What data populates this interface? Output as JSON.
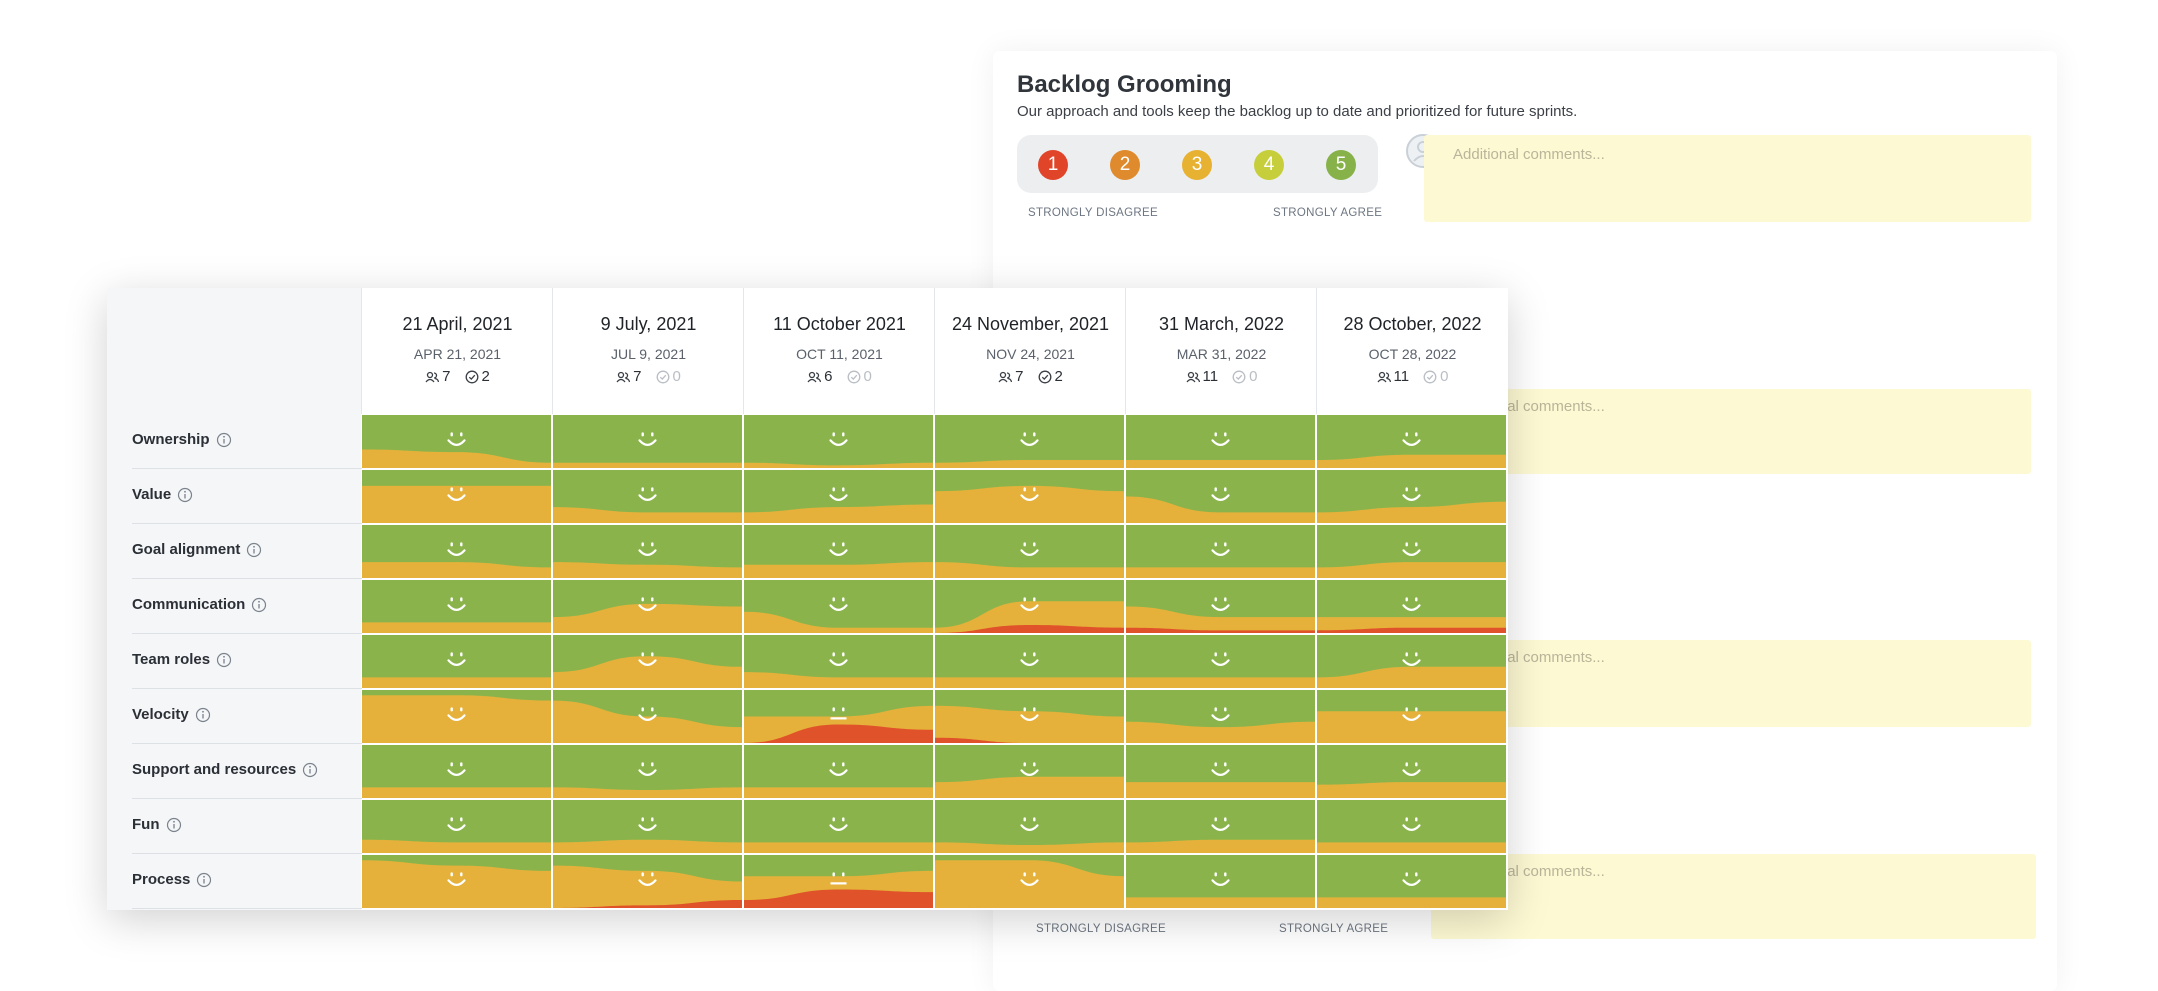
{
  "card": {
    "title": "Backlog Grooming",
    "description": "Our approach and tools keep the backlog up to date and prioritized for future sprints.",
    "scale": [
      1,
      2,
      3,
      4,
      5
    ],
    "scale_low": "STRONGLY DISAGREE",
    "scale_high": "STRONGLY AGREE",
    "comment_placeholder": "Additional comments..."
  },
  "table": {
    "columns": [
      {
        "date": "21 April, 2021",
        "short": "APR 21, 2021",
        "participants": 7,
        "actions": 2
      },
      {
        "date": "9 July, 2021",
        "short": "JUL 9, 2021",
        "participants": 7,
        "actions": 0
      },
      {
        "date": "11 October 2021",
        "short": "OCT 11, 2021",
        "participants": 6,
        "actions": 0
      },
      {
        "date": "24 November, 2021",
        "short": "NOV 24, 2021",
        "participants": 7,
        "actions": 2
      },
      {
        "date": "31 March, 2022",
        "short": "MAR 31, 2022",
        "participants": 11,
        "actions": 0
      },
      {
        "date": "28 October, 2022",
        "short": "OCT 28, 2022",
        "participants": 11,
        "actions": 0
      }
    ],
    "rows": [
      "Ownership",
      "Value",
      "Goal alignment",
      "Communication",
      "Team roles",
      "Velocity",
      "Support and resources",
      "Fun",
      "Process"
    ]
  }
}
